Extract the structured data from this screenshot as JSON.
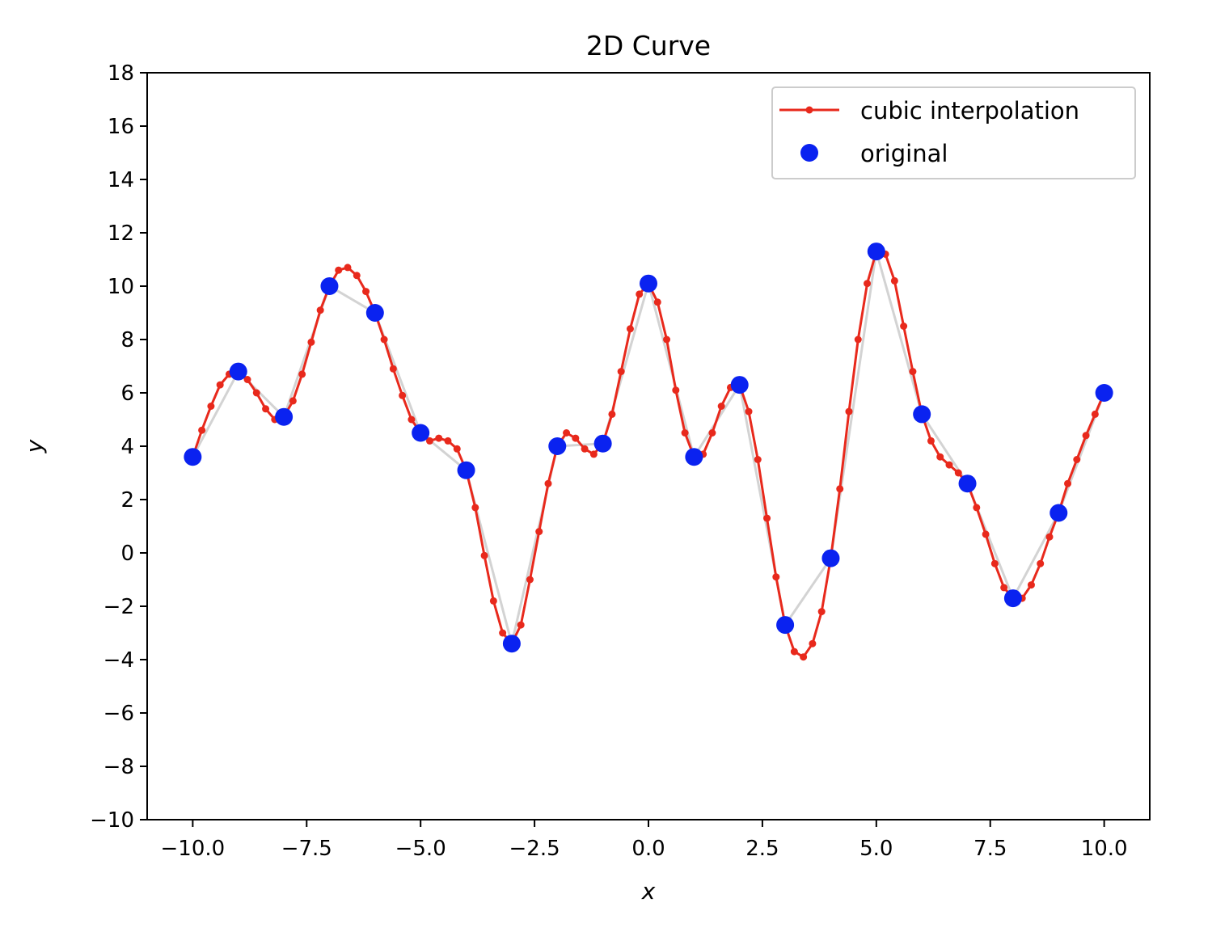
{
  "chart_data": {
    "type": "line",
    "title": "2D Curve",
    "xlabel": "x",
    "ylabel": "y",
    "xlim": [
      -11.0,
      11.0
    ],
    "ylim": [
      -10,
      18
    ],
    "xticks": [
      -10.0,
      -7.5,
      -5.0,
      -2.5,
      0.0,
      2.5,
      5.0,
      7.5,
      10.0
    ],
    "xtick_labels": [
      "−10.0",
      "−7.5",
      "−5.0",
      "−2.5",
      "0.0",
      "2.5",
      "5.0",
      "7.5",
      "10.0"
    ],
    "yticks": [
      -10,
      -8,
      -6,
      -4,
      -2,
      0,
      2,
      4,
      6,
      8,
      10,
      12,
      14,
      16,
      18
    ],
    "ytick_labels": [
      "−10",
      "−8",
      "−6",
      "−4",
      "−2",
      "0",
      "2",
      "4",
      "6",
      "8",
      "10",
      "12",
      "14",
      "16",
      "18"
    ],
    "grid": false,
    "legend_position": "top-right",
    "series": [
      {
        "name": "cubic interpolation",
        "color": "#e8291c",
        "style": "line-with-dots",
        "x": [
          -10.0,
          -9.8,
          -9.6,
          -9.4,
          -9.2,
          -9.0,
          -8.8,
          -8.6,
          -8.4,
          -8.2,
          -8.0,
          -7.8,
          -7.6,
          -7.4,
          -7.2,
          -7.0,
          -6.8,
          -6.6,
          -6.4,
          -6.2,
          -6.0,
          -5.8,
          -5.6,
          -5.4,
          -5.2,
          -5.0,
          -4.8,
          -4.6,
          -4.4,
          -4.2,
          -4.0,
          -3.8,
          -3.6,
          -3.4,
          -3.2,
          -3.0,
          -2.8,
          -2.6,
          -2.4,
          -2.2,
          -2.0,
          -1.8,
          -1.6,
          -1.4,
          -1.2,
          -1.0,
          -0.8,
          -0.6,
          -0.4,
          -0.2,
          0.0,
          0.2,
          0.4,
          0.6,
          0.8,
          1.0,
          1.2,
          1.4,
          1.6,
          1.8,
          2.0,
          2.2,
          2.4,
          2.6,
          2.8,
          3.0,
          3.2,
          3.4,
          3.6,
          3.8,
          4.0,
          4.2,
          4.4,
          4.6,
          4.8,
          5.0,
          5.2,
          5.4,
          5.6,
          5.8,
          6.0,
          6.2,
          6.4,
          6.6,
          6.8,
          7.0,
          7.2,
          7.4,
          7.6,
          7.8,
          8.0,
          8.2,
          8.4,
          8.6,
          8.8,
          9.0,
          9.2,
          9.4,
          9.6,
          9.8,
          10.0
        ],
        "y": [
          3.6,
          4.6,
          5.5,
          6.3,
          6.7,
          6.8,
          6.5,
          6.0,
          5.4,
          5.0,
          5.1,
          5.7,
          6.7,
          7.9,
          9.1,
          10.0,
          10.6,
          10.7,
          10.4,
          9.8,
          9.0,
          8.0,
          6.9,
          5.9,
          5.0,
          4.5,
          4.2,
          4.3,
          4.2,
          3.9,
          3.1,
          1.7,
          -0.1,
          -1.8,
          -3.0,
          -3.4,
          -2.7,
          -1.0,
          0.8,
          2.6,
          4.0,
          4.5,
          4.3,
          3.9,
          3.7,
          4.1,
          5.2,
          6.8,
          8.4,
          9.7,
          10.1,
          9.4,
          8.0,
          6.1,
          4.5,
          3.6,
          3.7,
          4.5,
          5.5,
          6.2,
          6.3,
          5.3,
          3.5,
          1.3,
          -0.9,
          -2.7,
          -3.7,
          -3.9,
          -3.4,
          -2.2,
          -0.2,
          2.4,
          5.3,
          8.0,
          10.1,
          11.3,
          11.2,
          10.2,
          8.5,
          6.8,
          5.2,
          4.2,
          3.6,
          3.3,
          3.0,
          2.6,
          1.7,
          0.7,
          -0.4,
          -1.3,
          -1.7,
          -1.7,
          -1.2,
          -0.4,
          0.6,
          1.5,
          2.6,
          3.5,
          4.4,
          5.2,
          6.0
        ]
      },
      {
        "name": "original",
        "color": "#0a22f0",
        "style": "markers",
        "x": [
          -10,
          -9,
          -8,
          -7,
          -6,
          -5,
          -4,
          -3,
          -2,
          -1,
          0,
          1,
          2,
          3,
          4,
          5,
          6,
          7,
          8,
          9,
          10
        ],
        "y": [
          3.6,
          6.8,
          5.1,
          10.0,
          9.0,
          4.5,
          3.1,
          -3.4,
          4.0,
          4.1,
          10.1,
          3.6,
          6.3,
          -2.7,
          -0.2,
          11.3,
          5.2,
          2.6,
          -1.7,
          1.5,
          6.0
        ]
      }
    ],
    "guide_line": {
      "color": "#d3d3d3"
    }
  }
}
